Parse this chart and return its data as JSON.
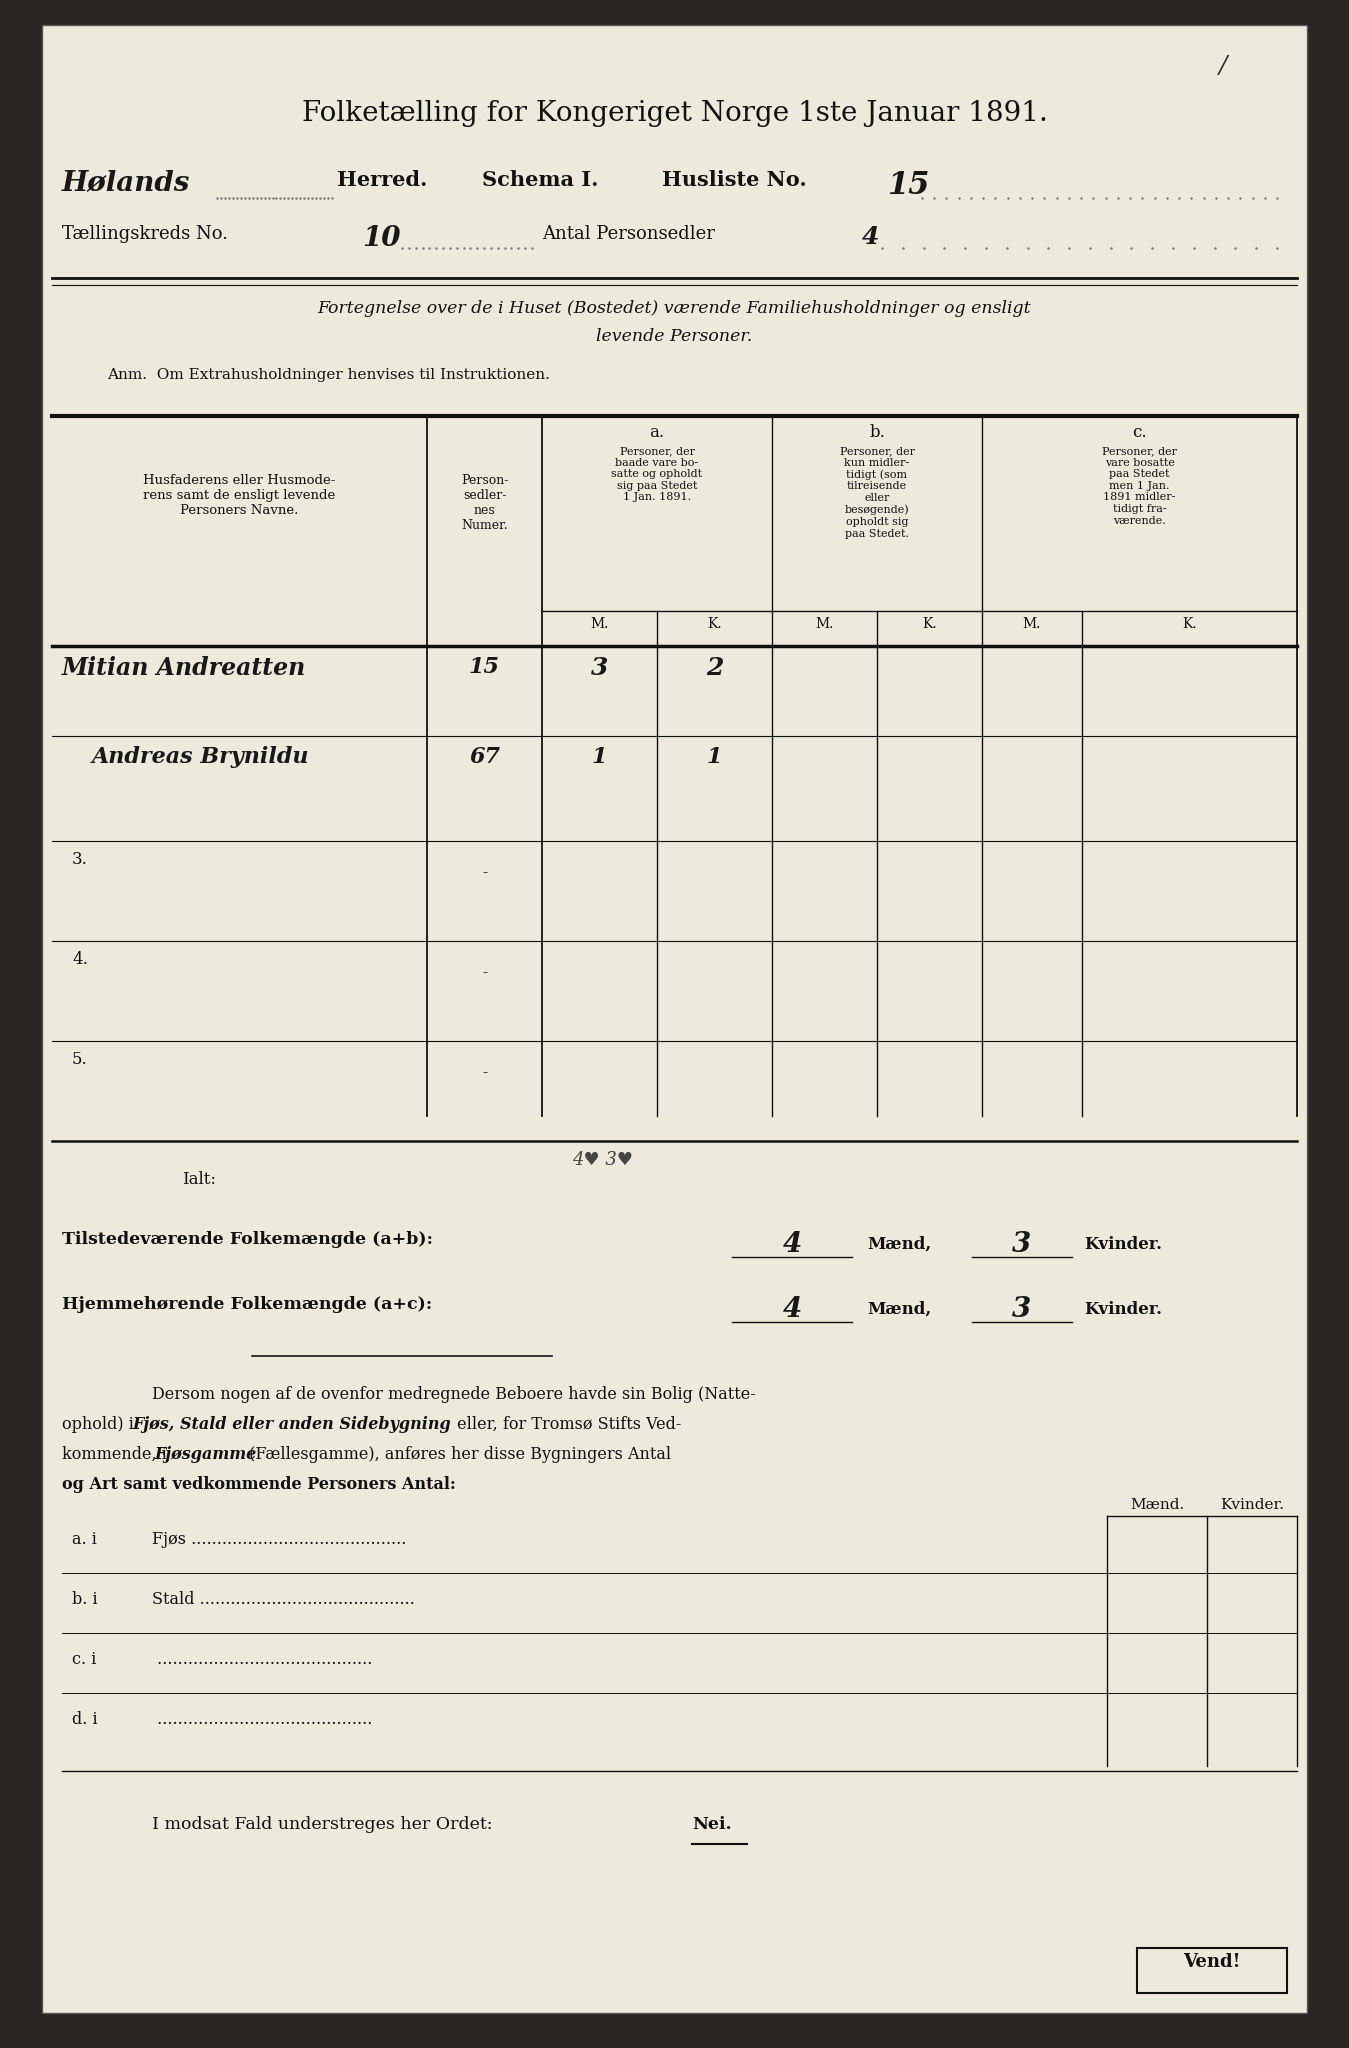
{
  "paper_color": "#ede9db",
  "dark_color": "#111111",
  "title": "Folketælling for Kongeriget Norge 1ste Januar 1891.",
  "hw_herred": "Hølands",
  "herred_label": "Herred.",
  "schema_label": "Schema I.",
  "husliste_label": "Husliste No.",
  "husliste_no": "15",
  "taellingskreds_label": "Tællingskreds No.",
  "taellingskreds_no": "10",
  "antal_label": "Antal Personsedler",
  "antal_no": "4",
  "fortegnelse1": "Fortegnelse over de i Huset (Bostedet) værende Familiehusholdninger og ensligt",
  "fortegnelse2": "levende Personer.",
  "anm": "Anm.  Om Extrahusholdninger henvises til Instruktionen.",
  "col_a_title": "a.",
  "col_a_text": "Personer, der\nbaade vare bo-\nsatte og opholdt\nsig paa Stedet\n1 Jan. 1891.",
  "col_b_title": "b.",
  "col_b_text": "Personer, der\nkun midler-\ntidigt (som\ntilreisende\neller\nbesøgende)\nopholdt sig\npaa Stedet.",
  "col_c_title": "c.",
  "col_c_text": "Personer, der\nvare bosatte\npaa Stedet\nmen 1 Jan.\n1891 midler-\ntidigt fra-\nværende.",
  "col_names_text": "Husfaderens eller Husmode-\nrens samt de ensligt levende\nPersoners Navne.",
  "col_person_text": "Person-\nsedler-\nnes\nNumer.",
  "row1_name": "Mitian Andreatten",
  "row1_no": "15",
  "row1_aM": "3",
  "row1_aK": "2",
  "row2_name": "Andreas Brynildu",
  "row2_no": "67",
  "row2_aM": "1",
  "row2_aK": "1",
  "ialt_label": "Ialt:",
  "ialt_hw": "4♣ 3♣",
  "tv_text": "Tilstedeværende Folkemængde (a+b):",
  "tv_maend": "4",
  "tv_kvinder": "3",
  "hj_text": "Hjemmehørende Folkemængde (a+c):",
  "hj_maend": "4",
  "hj_kvinder": "3",
  "maend_lbl": "Mænd,",
  "kvinder_lbl": "Kvinder.",
  "dersom1": "Dersom nogen af de ovenfor medregnede Beboere havde sin Bolig (Natte-",
  "dersom2a": "ophold) i ",
  "dersom2b": "Fjøs, Stald eller anden Sidebygning",
  "dersom2c": " eller, for Tromsø Stifts Ved-",
  "dersom3a": "kommende, i ",
  "dersom3b": "Fjøsgamme",
  "dersom3c": " (Fællesgamme), anføres her disse Bygningers Antal",
  "dersom4": "og Art samt vedkommende Personers Antal:",
  "maend_col": "Mænd.",
  "kvinder_col": "Kvinder.",
  "sub_a_lbl": "a. i",
  "sub_a_txt": "Fjøs",
  "sub_b_lbl": "b. i",
  "sub_b_txt": "Stald",
  "sub_c_lbl": "c. i",
  "sub_d_lbl": "d. i",
  "modsat": "I modsat Fald understreges her Ordet: ",
  "nei": "Nei.",
  "vend": "Vend!"
}
